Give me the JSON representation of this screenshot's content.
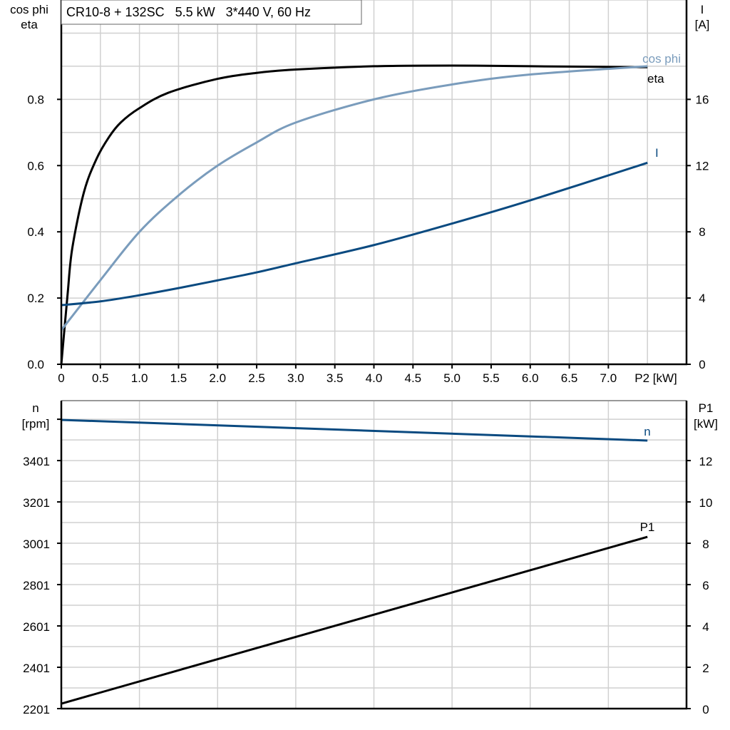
{
  "chart_data": [
    {
      "type": "line",
      "title": "CR10-8 + 132SC   5.5 kW   3*440 V, 60 Hz",
      "xlabel": "P2 [kW]",
      "ylabel_left": [
        "cos phi",
        "eta"
      ],
      "ylabel_right": [
        "I",
        "[A]"
      ],
      "xlim": [
        0,
        8
      ],
      "ylim_left": [
        0,
        1.1
      ],
      "ylim_right": [
        0,
        22
      ],
      "grid": true,
      "x_ticks": [
        "0",
        "0.5",
        "1.0",
        "1.5",
        "2.0",
        "2.5",
        "3.0",
        "3.5",
        "4.0",
        "4.5",
        "5.0",
        "5.5",
        "6.0",
        "6.5",
        "7.0"
      ],
      "y_ticks_left": [
        "0.0",
        "0.2",
        "0.4",
        "0.6",
        "0.8"
      ],
      "y_ticks_right": [
        "0",
        "4",
        "8",
        "12",
        "16"
      ],
      "series": [
        {
          "name": "eta",
          "axis": "left",
          "color": "#000000",
          "x": [
            0,
            0.08,
            0.14,
            0.29,
            0.45,
            0.61,
            0.76,
            0.99,
            1.37,
            2.0,
            2.5,
            3.0,
            4.0,
            5.0,
            6.0,
            7.5
          ],
          "y": [
            0,
            0.21,
            0.35,
            0.52,
            0.62,
            0.686,
            0.73,
            0.772,
            0.82,
            0.862,
            0.88,
            0.89,
            0.9,
            0.902,
            0.9,
            0.897
          ]
        },
        {
          "name": "cos phi",
          "axis": "left",
          "color": "#7a9cbc",
          "x": [
            0,
            0.5,
            1.0,
            1.5,
            2.0,
            2.5,
            3.0,
            4.0,
            5.0,
            6.0,
            7.5
          ],
          "y": [
            0.103,
            0.254,
            0.4,
            0.51,
            0.6,
            0.67,
            0.73,
            0.8,
            0.845,
            0.875,
            0.9
          ]
        },
        {
          "name": "I",
          "axis": "right",
          "color": "#0a4a80",
          "x": [
            0,
            0.5,
            1.0,
            1.5,
            2.0,
            2.5,
            3.0,
            4.0,
            5.0,
            6.0,
            7.5
          ],
          "y": [
            3.57,
            3.8,
            4.17,
            4.6,
            5.07,
            5.55,
            6.1,
            7.2,
            8.5,
            9.9,
            12.17
          ]
        }
      ]
    },
    {
      "type": "line",
      "ylabel_left": [
        "n",
        "[rpm]"
      ],
      "ylabel_right": [
        "P1",
        "[kW]"
      ],
      "xlim": [
        0,
        8
      ],
      "ylim_left": [
        2201,
        3691
      ],
      "ylim_right": [
        0,
        14.9
      ],
      "grid": true,
      "y_ticks_left": [
        "2201",
        "2401",
        "2601",
        "2801",
        "3001",
        "3201",
        "3401"
      ],
      "y_ticks_right": [
        "0",
        "2",
        "4",
        "6",
        "8",
        "10",
        "12"
      ],
      "series": [
        {
          "name": "n",
          "axis": "left",
          "color": "#0a4a80",
          "x": [
            0,
            7.5
          ],
          "y": [
            3598,
            3498
          ]
        },
        {
          "name": "P1",
          "axis": "right",
          "color": "#000000",
          "x": [
            0,
            7.5
          ],
          "y": [
            0.24,
            8.31
          ]
        }
      ]
    }
  ]
}
